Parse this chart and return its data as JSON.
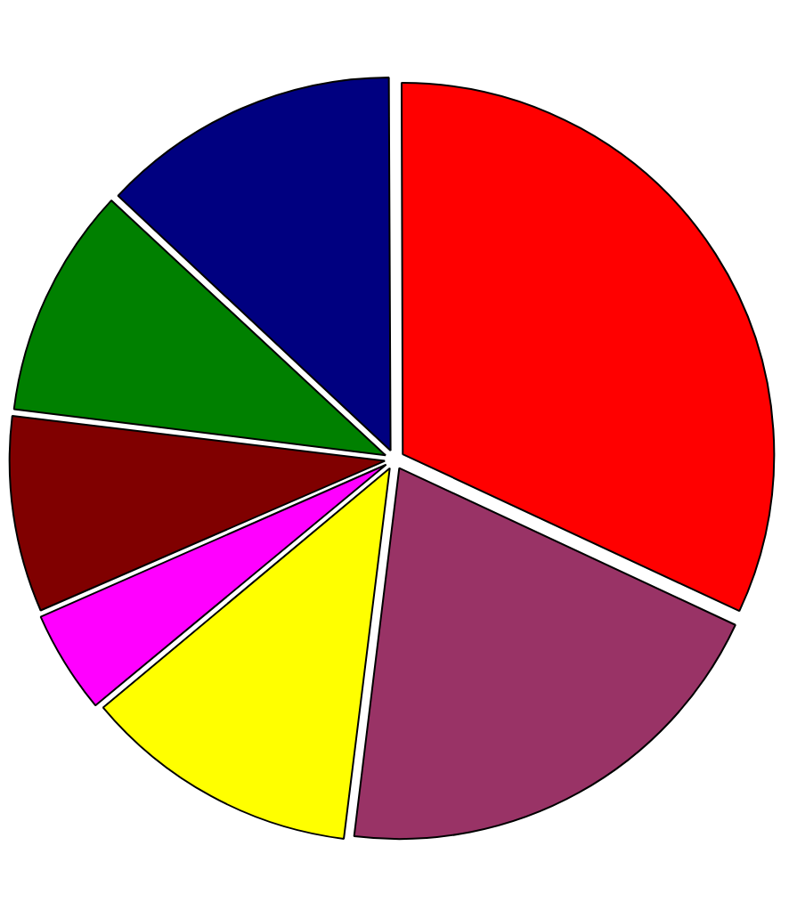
{
  "chart_data": {
    "type": "pie",
    "categories": [
      null,
      null,
      null,
      null,
      null,
      null,
      null
    ],
    "values": [
      13,
      32,
      20,
      12,
      4.5,
      8.5,
      10
    ],
    "colors": [
      "#000080",
      "#ff0000",
      "#993366",
      "#ffff00",
      "#ff00ff",
      "#800000",
      "#008000"
    ]
  }
}
